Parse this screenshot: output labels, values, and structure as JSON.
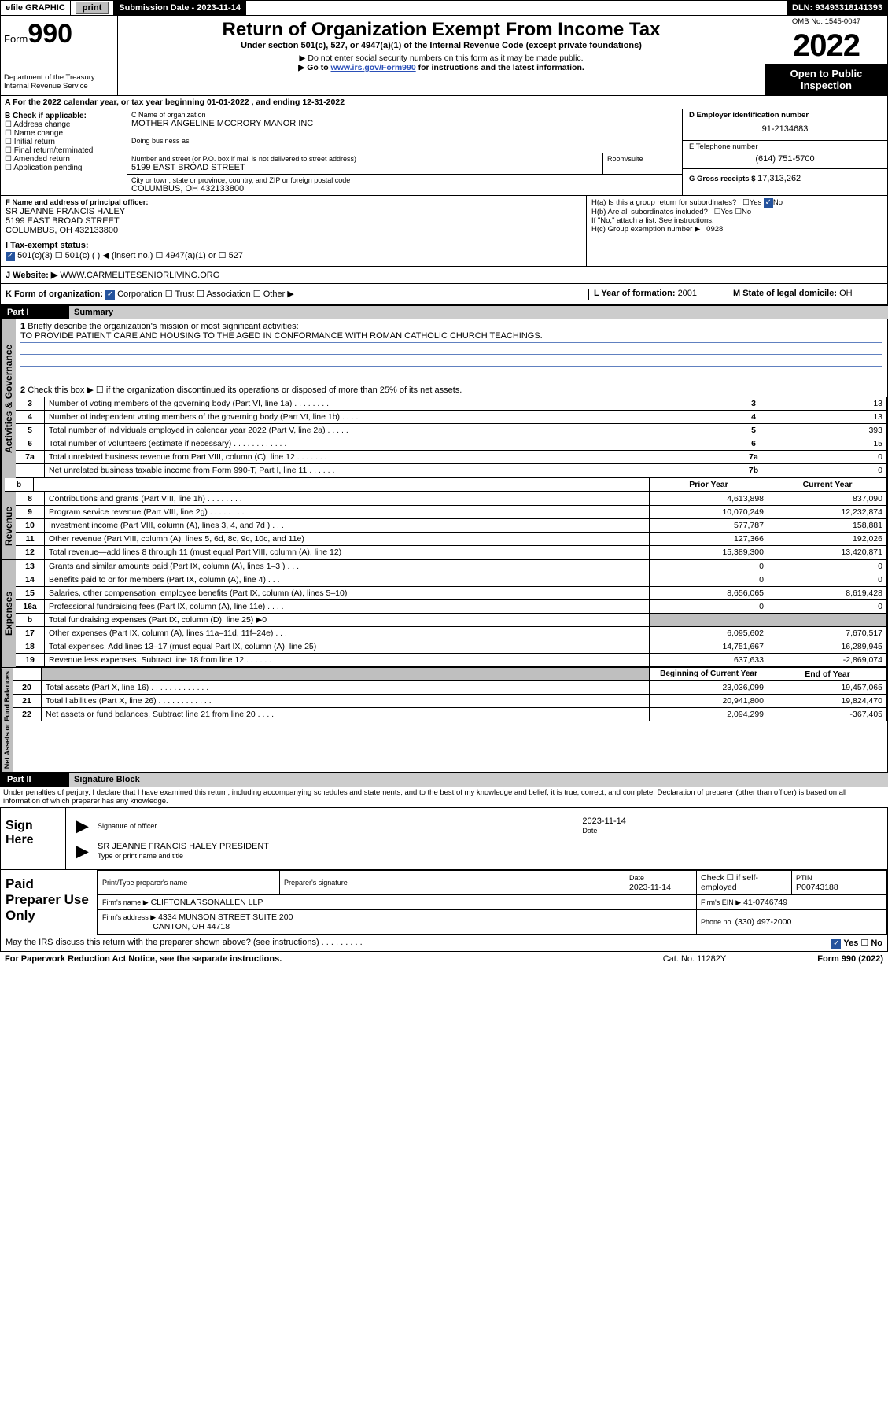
{
  "topbar": {
    "efile": "efile GRAPHIC",
    "print": "print",
    "sub_label": "Submission Date - ",
    "sub_date": "2023-11-14",
    "dln_label": "DLN: ",
    "dln": "93493318141393"
  },
  "header": {
    "form_prefix": "Form",
    "form_no": "990",
    "dept": "Department of the Treasury",
    "irs": "Internal Revenue Service",
    "title": "Return of Organization Exempt From Income Tax",
    "subtitle": "Under section 501(c), 527, or 4947(a)(1) of the Internal Revenue Code (except private foundations)",
    "note1": "▶ Do not enter social security numbers on this form as it may be made public.",
    "note2_pre": "▶ Go to ",
    "note2_link": "www.irs.gov/Form990",
    "note2_post": " for instructions and the latest information.",
    "omb": "OMB No. 1545-0047",
    "year": "2022",
    "open": "Open to Public Inspection"
  },
  "line_a": "A For the 2022 calendar year, or tax year beginning 01-01-2022   , and ending 12-31-2022",
  "sec_b": {
    "head": "B Check if applicable:",
    "items": [
      "Address change",
      "Name change",
      "Initial return",
      "Final return/terminated",
      "Amended return",
      "Application pending"
    ]
  },
  "sec_c": {
    "label": "C Name of organization",
    "name": "MOTHER ANGELINE MCCRORY MANOR INC",
    "dba": "Doing business as",
    "addr_label": "Number and street (or P.O. box if mail is not delivered to street address)",
    "room": "Room/suite",
    "addr": "5199 EAST BROAD STREET",
    "city_label": "City or town, state or province, country, and ZIP or foreign postal code",
    "city": "COLUMBUS, OH  432133800"
  },
  "sec_d": {
    "label": "D Employer identification number",
    "val": "91-2134683"
  },
  "sec_e": {
    "label": "E Telephone number",
    "val": "(614) 751-5700"
  },
  "sec_g": {
    "label": "G Gross receipts $ ",
    "val": "17,313,262"
  },
  "sec_f": {
    "label": "F Name and address of principal officer:",
    "name": "SR JEANNE FRANCIS HALEY",
    "addr1": "5199 EAST BROAD STREET",
    "addr2": "COLUMBUS, OH  432133800"
  },
  "sec_h": {
    "a": "H(a)  Is this a group return for subordinates?",
    "a_yes": "Yes",
    "a_no": "No",
    "b": "H(b)  Are all subordinates included?",
    "b_yes": "Yes",
    "b_no": "No",
    "b_note": "If \"No,\" attach a list. See instructions.",
    "c": "H(c)  Group exemption number ▶",
    "c_val": "0928"
  },
  "sec_i": {
    "label": "I   Tax-exempt status:",
    "o1": "501(c)(3)",
    "o2": "501(c) (  ) ◀ (insert no.)",
    "o3": "4947(a)(1) or",
    "o4": "527"
  },
  "sec_j": {
    "label": "J   Website: ▶",
    "val": "WWW.CARMELITESENIORLIVING.ORG"
  },
  "sec_k": {
    "label": "K Form of organization:",
    "o1": "Corporation",
    "o2": "Trust",
    "o3": "Association",
    "o4": "Other ▶"
  },
  "sec_l": {
    "label": "L Year of formation: ",
    "val": "2001"
  },
  "sec_m": {
    "label": "M State of legal domicile: ",
    "val": "OH"
  },
  "part1": {
    "hdr": "Part I",
    "title": "Summary",
    "q1": "Briefly describe the organization's mission or most significant activities:",
    "mission": "TO PROVIDE PATIENT CARE AND HOUSING TO THE AGED IN CONFORMANCE WITH ROMAN CATHOLIC CHURCH TEACHINGS.",
    "q2": "Check this box ▶ ☐  if the organization discontinued its operations or disposed of more than 25% of its net assets."
  },
  "governance": {
    "label": "Activities & Governance",
    "rows": [
      {
        "n": "3",
        "t": "Number of voting members of the governing body (Part VI, line 1a)   .    .    .    .    .    .    .    .",
        "lab": "3",
        "v": "13"
      },
      {
        "n": "4",
        "t": "Number of independent voting members of the governing body (Part VI, line 1b)   .    .    .    .",
        "lab": "4",
        "v": "13"
      },
      {
        "n": "5",
        "t": "Total number of individuals employed in calendar year 2022 (Part V, line 2a)   .    .    .    .    .",
        "lab": "5",
        "v": "393"
      },
      {
        "n": "6",
        "t": "Total number of volunteers (estimate if necessary)   .    .    .    .    .    .    .    .    .    .    .    .",
        "lab": "6",
        "v": "15"
      },
      {
        "n": "7a",
        "t": "Total unrelated business revenue from Part VIII, column (C), line 12   .    .    .    .    .    .    .",
        "lab": "7a",
        "v": "0"
      },
      {
        "n": "",
        "t": "Net unrelated business taxable income from Form 990-T, Part I, line 11   .    .    .    .    .    .",
        "lab": "7b",
        "v": "0"
      }
    ]
  },
  "cols": {
    "prior": "Prior Year",
    "current": "Current Year"
  },
  "revenue": {
    "label": "Revenue",
    "rows": [
      {
        "n": "8",
        "t": "Contributions and grants (Part VIII, line 1h)   .    .    .    .    .    .    .    .",
        "p": "4,613,898",
        "c": "837,090"
      },
      {
        "n": "9",
        "t": "Program service revenue (Part VIII, line 2g)   .    .    .    .    .    .    .    .",
        "p": "10,070,249",
        "c": "12,232,874"
      },
      {
        "n": "10",
        "t": "Investment income (Part VIII, column (A), lines 3, 4, and 7d )   .    .    .",
        "p": "577,787",
        "c": "158,881"
      },
      {
        "n": "11",
        "t": "Other revenue (Part VIII, column (A), lines 5, 6d, 8c, 9c, 10c, and 11e)",
        "p": "127,366",
        "c": "192,026"
      },
      {
        "n": "12",
        "t": "Total revenue—add lines 8 through 11 (must equal Part VIII, column (A), line 12)",
        "p": "15,389,300",
        "c": "13,420,871"
      }
    ]
  },
  "expenses": {
    "label": "Expenses",
    "rows": [
      {
        "n": "13",
        "t": "Grants and similar amounts paid (Part IX, column (A), lines 1–3 )   .    .    .",
        "p": "0",
        "c": "0"
      },
      {
        "n": "14",
        "t": "Benefits paid to or for members (Part IX, column (A), line 4)   .    .    .",
        "p": "0",
        "c": "0"
      },
      {
        "n": "15",
        "t": "Salaries, other compensation, employee benefits (Part IX, column (A), lines 5–10)",
        "p": "8,656,065",
        "c": "8,619,428"
      },
      {
        "n": "16a",
        "t": "Professional fundraising fees (Part IX, column (A), line 11e)   .    .    .    .",
        "p": "0",
        "c": "0"
      },
      {
        "n": "b",
        "t": "Total fundraising expenses (Part IX, column (D), line 25) ▶0",
        "p": "",
        "c": "",
        "shade": true
      },
      {
        "n": "17",
        "t": "Other expenses (Part IX, column (A), lines 11a–11d, 11f–24e)   .    .    .",
        "p": "6,095,602",
        "c": "7,670,517"
      },
      {
        "n": "18",
        "t": "Total expenses. Add lines 13–17 (must equal Part IX, column (A), line 25)",
        "p": "14,751,667",
        "c": "16,289,945"
      },
      {
        "n": "19",
        "t": "Revenue less expenses. Subtract line 18 from line 12   .    .    .    .    .    .",
        "p": "637,633",
        "c": "-2,869,074"
      }
    ]
  },
  "netassets": {
    "label": "Net Assets or Fund Balances",
    "hbeg": "Beginning of Current Year",
    "hend": "End of Year",
    "rows": [
      {
        "n": "20",
        "t": "Total assets (Part X, line 16)   .    .    .    .    .    .    .    .    .    .    .    .    .",
        "p": "23,036,099",
        "c": "19,457,065"
      },
      {
        "n": "21",
        "t": "Total liabilities (Part X, line 26)   .    .    .    .    .    .    .    .    .    .    .    .",
        "p": "20,941,800",
        "c": "19,824,470"
      },
      {
        "n": "22",
        "t": "Net assets or fund balances. Subtract line 21 from line 20   .    .    .    .",
        "p": "2,094,299",
        "c": "-367,405"
      }
    ]
  },
  "part2": {
    "hdr": "Part II",
    "title": "Signature Block",
    "decl": "Under penalties of perjury, I declare that I have examined this return, including accompanying schedules and statements, and to the best of my knowledge and belief, it is true, correct, and complete. Declaration of preparer (other than officer) is based on all information of which preparer has any knowledge."
  },
  "sign": {
    "here": "Sign Here",
    "sig": "Signature of officer",
    "date_lbl": "Date",
    "date": "2023-11-14",
    "name": "SR JEANNE FRANCIS HALEY PRESIDENT",
    "name_lbl": "Type or print name and title"
  },
  "prep": {
    "title": "Paid Preparer Use Only",
    "h1": "Print/Type preparer's name",
    "h2": "Preparer's signature",
    "h3": "Date",
    "date": "2023-11-14",
    "chk": "Check ☐ if self-employed",
    "ptin_lbl": "PTIN",
    "ptin": "P00743188",
    "firm_lbl": "Firm's name    ▶",
    "firm": "CLIFTONLARSONALLEN LLP",
    "ein_lbl": "Firm's EIN ▶",
    "ein": "41-0746749",
    "addr_lbl": "Firm's address ▶",
    "addr1": "4334 MUNSON STREET SUITE 200",
    "addr2": "CANTON, OH  44718",
    "ph_lbl": "Phone no. ",
    "ph": "(330) 497-2000"
  },
  "footer": {
    "discuss": "May the IRS discuss this return with the preparer shown above? (see instructions)   .    .    .    .    .    .    .    .    .",
    "yes": "Yes",
    "no": "No",
    "pra": "For Paperwork Reduction Act Notice, see the separate instructions.",
    "cat": "Cat. No. 11282Y",
    "form": "Form 990 (2022)"
  }
}
